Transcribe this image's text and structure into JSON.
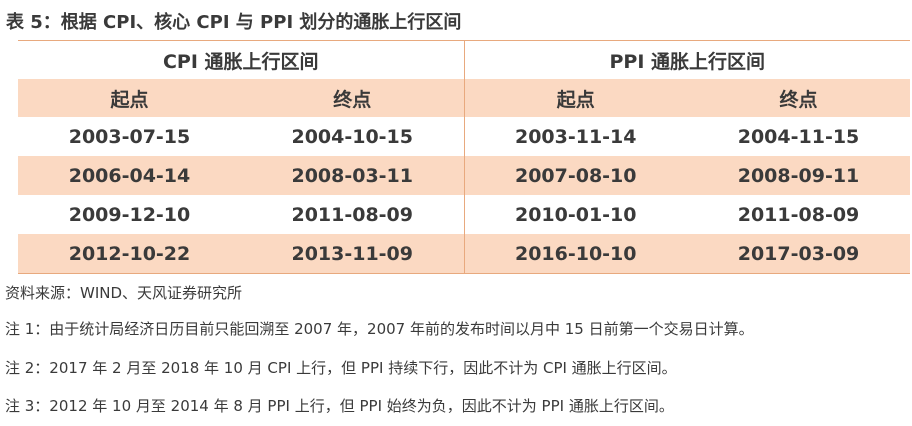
{
  "title": "表 5：根据 CPI、核心 CPI 与 PPI 划分的通胀上行区间",
  "table": {
    "groups": [
      "CPI 通胀上行区间",
      "PPI 通胀上行区间"
    ],
    "columns": [
      "起点",
      "终点",
      "起点",
      "终点"
    ],
    "rows": [
      [
        "2003-07-15",
        "2004-10-15",
        "2003-11-14",
        "2004-11-15"
      ],
      [
        "2006-04-14",
        "2008-03-11",
        "2007-08-10",
        "2008-09-11"
      ],
      [
        "2009-12-10",
        "2011-08-09",
        "2010-01-10",
        "2011-08-09"
      ],
      [
        "2012-10-22",
        "2013-11-09",
        "2016-10-10",
        "2017-03-09"
      ]
    ]
  },
  "notes": {
    "source": "资料来源：WIND、天风证券研究所",
    "note1": "注 1：由于统计局经济日历目前只能回溯至 2007 年，2007 年前的发布时间以月中 15 日前第一个交易日计算。",
    "note2": "注 2：2017 年 2 月至 2018 年 10 月 CPI 上行，但 PPI 持续下行，因此不计为 CPI 通胀上行区间。",
    "note3": "注 3：2012 年 10 月至 2014 年 8 月 PPI 上行，但 PPI 始终为负，因此不计为 PPI 通胀上行区间。"
  },
  "colors": {
    "header_fill": "#fbd9c2",
    "border": "#e8a97e",
    "text": "#3a3a3a"
  }
}
